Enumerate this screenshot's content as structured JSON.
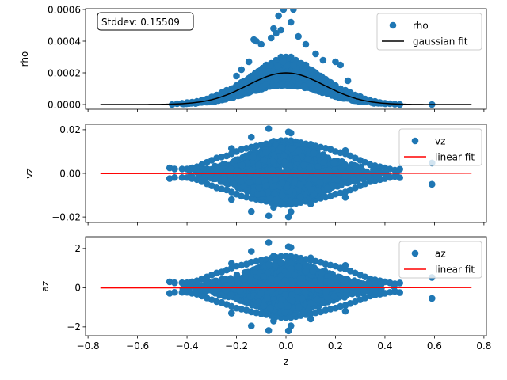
{
  "chart_data": [
    {
      "type": "scatter",
      "ylabel": "rho",
      "xlim": [
        -0.81,
        0.81
      ],
      "ylim": [
        -3e-05,
        0.000605
      ],
      "yticks": [
        0.0,
        0.0002,
        0.0004,
        0.0006
      ],
      "ytick_labels": [
        "0.0000",
        "0.0002",
        "0.0004",
        "0.0006"
      ],
      "show_xtick_labels": false,
      "annotation": "Stddev: 0.15509",
      "legend": {
        "placement": "upper-right",
        "entries": [
          "rho",
          "gaussian fit"
        ]
      },
      "series": [
        {
          "name": "rho",
          "kind": "scatter",
          "color": "#1f77b4",
          "x": [
            -0.46,
            -0.44,
            -0.42,
            -0.4,
            -0.38,
            -0.36,
            -0.34,
            -0.32,
            -0.3,
            -0.28,
            -0.26,
            -0.24,
            -0.22,
            -0.2,
            -0.18,
            -0.16,
            -0.14,
            -0.12,
            -0.1,
            -0.08,
            -0.06,
            -0.04,
            -0.02,
            0.0,
            0.02,
            0.04,
            0.06,
            0.08,
            0.1,
            0.12,
            0.14,
            0.16,
            0.18,
            0.2,
            0.22,
            0.24,
            0.26,
            0.28,
            0.3,
            0.32,
            0.34,
            0.36,
            0.38,
            0.4,
            0.42,
            0.44,
            0.46,
            -0.13,
            -0.12,
            -0.1,
            -0.06,
            -0.05,
            -0.04,
            -0.03,
            -0.02,
            -0.01,
            0.02,
            0.03,
            0.05,
            0.08,
            0.12,
            0.15,
            0.2,
            0.22,
            -0.2,
            -0.18,
            -0.15,
            0.25,
            0.59
          ],
          "y": [
            0.0,
            5e-06,
            8e-06,
            1.2e-05,
            1.5e-05,
            2e-05,
            2.8e-05,
            3.5e-05,
            4.8e-05,
            6e-05,
            7.5e-05,
            9e-05,
            0.0001,
            0.00012,
            0.00014,
            0.00015,
            0.00018,
            0.0002,
            0.00022,
            0.00025,
            0.00026,
            0.00028,
            0.0003,
            0.0003,
            0.0003,
            0.00028,
            0.00026,
            0.00025,
            0.00022,
            0.0002,
            0.00018,
            0.00016,
            0.00014,
            0.00012,
            0.0001,
            9e-05,
            7.5e-05,
            6e-05,
            5e-05,
            3.5e-05,
            2.5e-05,
            2e-05,
            1.2e-05,
            8e-06,
            5e-06,
            2e-06,
            0.0,
            0.00041,
            0.0004,
            0.00038,
            0.00042,
            0.00048,
            0.00045,
            0.00056,
            0.00047,
            0.0006,
            0.00052,
            0.0006,
            0.00043,
            0.00038,
            0.00032,
            0.00028,
            0.00027,
            0.00025,
            0.00018,
            0.00022,
            0.00027,
            0.00015,
            0.0
          ]
        },
        {
          "name": "gaussian fit",
          "kind": "curve",
          "color": "#000000",
          "mean": 0.0,
          "stddev": 0.15509,
          "peak": 0.0002,
          "x_range": [
            -0.75,
            0.75
          ]
        }
      ]
    },
    {
      "type": "scatter",
      "ylabel": "vz",
      "xlim": [
        -0.81,
        0.81
      ],
      "ylim": [
        -0.0225,
        0.0225
      ],
      "yticks": [
        -0.02,
        0.0,
        0.02
      ],
      "ytick_labels": [
        "−0.02",
        "0.00",
        "0.02"
      ],
      "show_xtick_labels": false,
      "legend": {
        "placement": "upper-right",
        "entries": [
          "vz",
          "linear fit"
        ]
      },
      "series": [
        {
          "name": "vz",
          "kind": "scatter",
          "color": "#1f77b4",
          "x": [
            -0.47,
            -0.45,
            -0.42,
            -0.4,
            -0.38,
            -0.36,
            -0.34,
            -0.32,
            -0.3,
            -0.28,
            -0.26,
            -0.24,
            -0.22,
            -0.2,
            -0.18,
            -0.16,
            -0.14,
            -0.12,
            -0.1,
            -0.08,
            -0.06,
            -0.04,
            -0.02,
            0.0,
            0.02,
            0.04,
            0.06,
            0.08,
            0.1,
            0.12,
            0.14,
            0.16,
            0.18,
            0.2,
            0.22,
            0.24,
            0.26,
            0.28,
            0.3,
            0.32,
            0.34,
            0.36,
            0.38,
            0.4,
            0.42,
            0.44,
            0.46,
            -0.07,
            0.02,
            -0.14,
            0.01,
            0.59,
            -0.22,
            0.24,
            -0.05,
            0.1
          ],
          "y": [
            0.0025,
            0.002,
            0.002,
            0.002,
            0.0025,
            0.003,
            0.004,
            0.005,
            0.006,
            0.007,
            0.0075,
            0.008,
            0.009,
            0.01,
            0.011,
            0.0115,
            0.012,
            0.0125,
            0.013,
            0.0135,
            0.014,
            0.0145,
            0.015,
            0.015,
            0.015,
            0.0145,
            0.014,
            0.0135,
            0.013,
            0.0125,
            0.012,
            0.0115,
            0.011,
            0.01,
            0.0095,
            0.009,
            0.008,
            0.007,
            0.006,
            0.005,
            0.004,
            0.0035,
            0.003,
            0.0025,
            0.002,
            0.0015,
            -0.002,
            0.0205,
            0.0185,
            -0.0175,
            -0.02,
            -0.005,
            -0.012,
            -0.011,
            -0.0155,
            -0.014
          ]
        },
        {
          "name": "linear fit",
          "kind": "line",
          "color": "#ff0000",
          "x": [
            -0.75,
            0.75
          ],
          "y": [
            -0.0001,
            0.0001
          ]
        }
      ],
      "symmetric": true
    },
    {
      "type": "scatter",
      "ylabel": "az",
      "xlabel": "z",
      "xlim": [
        -0.81,
        0.81
      ],
      "ylim": [
        -2.45,
        2.6
      ],
      "yticks": [
        -2,
        0,
        2
      ],
      "ytick_labels": [
        "−2",
        "0",
        "2"
      ],
      "xticks": [
        -0.8,
        -0.6,
        -0.4,
        -0.2,
        0.0,
        0.2,
        0.4,
        0.6,
        0.8
      ],
      "xtick_labels": [
        "−0.8",
        "−0.6",
        "−0.4",
        "−0.2",
        "0.0",
        "0.2",
        "0.4",
        "0.6",
        "0.8"
      ],
      "show_xtick_labels": true,
      "legend": {
        "placement": "upper-right",
        "entries": [
          "az",
          "linear fit"
        ]
      },
      "series": [
        {
          "name": "az",
          "kind": "scatter",
          "color": "#1f77b4",
          "x": [
            -0.47,
            -0.45,
            -0.42,
            -0.4,
            -0.38,
            -0.36,
            -0.34,
            -0.32,
            -0.3,
            -0.28,
            -0.26,
            -0.24,
            -0.22,
            -0.2,
            -0.18,
            -0.16,
            -0.14,
            -0.12,
            -0.1,
            -0.08,
            -0.06,
            -0.04,
            -0.02,
            0.0,
            0.02,
            0.04,
            0.06,
            0.08,
            0.1,
            0.12,
            0.14,
            0.16,
            0.18,
            0.2,
            0.22,
            0.24,
            0.26,
            0.28,
            0.3,
            0.32,
            0.34,
            0.36,
            0.38,
            0.4,
            0.42,
            0.44,
            0.46,
            -0.07,
            0.02,
            -0.14,
            0.01,
            0.59,
            -0.22,
            0.24,
            -0.05,
            0.1
          ],
          "y": [
            0.3,
            0.25,
            0.25,
            0.25,
            0.3,
            0.35,
            0.45,
            0.55,
            0.65,
            0.75,
            0.8,
            0.9,
            1.0,
            1.1,
            1.15,
            1.2,
            1.3,
            1.35,
            1.4,
            1.45,
            1.5,
            1.55,
            1.6,
            1.6,
            1.6,
            1.55,
            1.5,
            1.45,
            1.4,
            1.35,
            1.3,
            1.2,
            1.15,
            1.1,
            1.0,
            0.95,
            0.85,
            0.75,
            0.65,
            0.55,
            0.45,
            0.4,
            0.35,
            0.3,
            0.25,
            0.2,
            -0.25,
            2.3,
            2.05,
            -1.95,
            -2.2,
            -0.55,
            -1.3,
            -1.2,
            -1.7,
            -1.6
          ]
        },
        {
          "name": "linear fit",
          "kind": "line",
          "color": "#ff0000",
          "x": [
            -0.75,
            0.75
          ],
          "y": [
            -0.01,
            0.01
          ]
        }
      ],
      "symmetric": true
    }
  ]
}
